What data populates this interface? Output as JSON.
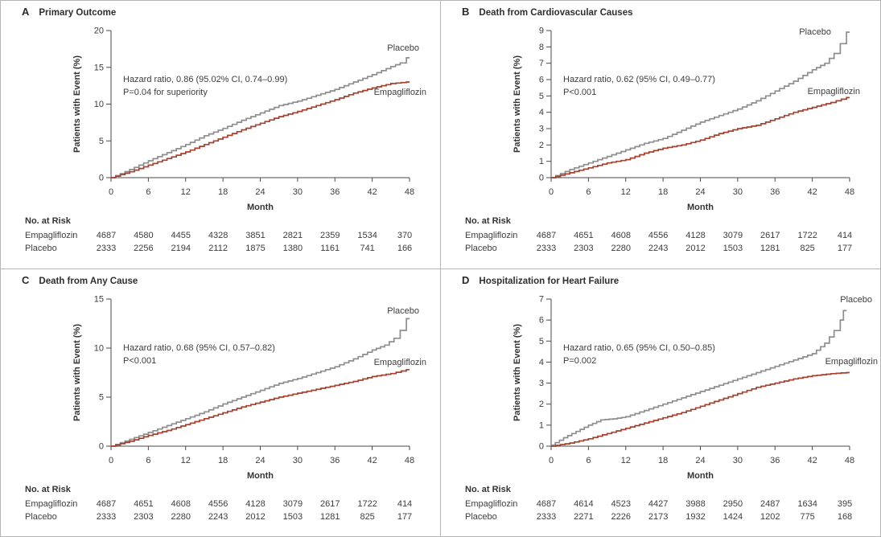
{
  "figure": {
    "description": "Four-panel Kaplan-Meier outcome figure",
    "colors": {
      "placebo": "#8e8e8e",
      "empagliflozin": "#a6402f",
      "axis": "#4a4a4a",
      "text": "#3d3d3d"
    }
  },
  "chart_data": [
    {
      "panel": "A",
      "title": "Primary Outcome",
      "type": "line",
      "subtype": "kaplan-meier-step",
      "xlabel": "Month",
      "ylabel": "Patients with Event (%)",
      "xlim": [
        0,
        48
      ],
      "ylim": [
        0,
        20
      ],
      "xticks": [
        0,
        6,
        12,
        18,
        24,
        30,
        36,
        42,
        48
      ],
      "yticks": [
        0,
        5,
        10,
        15,
        20
      ],
      "annotation": [
        "Hazard ratio, 0.86 (95.02% CI, 0.74–0.99)",
        "P=0.04 for superiority"
      ],
      "legend_position": "end-of-curve labels",
      "grid": false,
      "series": [
        {
          "name": "Placebo",
          "color": "#8e8e8e",
          "points": [
            [
              0,
              0
            ],
            [
              3,
              1.1
            ],
            [
              6,
              2.3
            ],
            [
              9,
              3.4
            ],
            [
              12,
              4.5
            ],
            [
              15,
              5.7
            ],
            [
              18,
              6.7
            ],
            [
              21,
              7.8
            ],
            [
              24,
              8.8
            ],
            [
              27,
              9.8
            ],
            [
              30,
              10.4
            ],
            [
              33,
              11.2
            ],
            [
              36,
              12.0
            ],
            [
              39,
              13.0
            ],
            [
              42,
              14.0
            ],
            [
              45,
              15.1
            ],
            [
              46.5,
              15.6
            ],
            [
              47.5,
              16.3
            ]
          ]
        },
        {
          "name": "Empagliflozin",
          "color": "#a6402f",
          "points": [
            [
              0,
              0
            ],
            [
              3,
              0.8
            ],
            [
              6,
              1.7
            ],
            [
              9,
              2.6
            ],
            [
              12,
              3.5
            ],
            [
              15,
              4.5
            ],
            [
              18,
              5.5
            ],
            [
              21,
              6.5
            ],
            [
              24,
              7.4
            ],
            [
              27,
              8.3
            ],
            [
              30,
              9.0
            ],
            [
              33,
              9.8
            ],
            [
              36,
              10.6
            ],
            [
              39,
              11.5
            ],
            [
              42,
              12.2
            ],
            [
              45,
              12.8
            ],
            [
              47.5,
              13.0
            ]
          ]
        }
      ],
      "no_at_risk": {
        "label": "No. at Risk",
        "months": [
          0,
          6,
          12,
          18,
          24,
          30,
          36,
          42,
          48
        ],
        "rows": [
          {
            "label": "Empagliflozin",
            "values": [
              4687,
              4580,
              4455,
              4328,
              3851,
              2821,
              2359,
              1534,
              370
            ]
          },
          {
            "label": "Placebo",
            "values": [
              2333,
              2256,
              2194,
              2112,
              1875,
              1380,
              1161,
              741,
              166
            ]
          }
        ]
      }
    },
    {
      "panel": "B",
      "title": "Death from Cardiovascular Causes",
      "type": "line",
      "subtype": "kaplan-meier-step",
      "xlabel": "Month",
      "ylabel": "Patients with Event (%)",
      "xlim": [
        0,
        48
      ],
      "ylim": [
        0,
        9
      ],
      "xticks": [
        0,
        6,
        12,
        18,
        24,
        30,
        36,
        42,
        48
      ],
      "yticks": [
        0,
        1,
        2,
        3,
        4,
        5,
        6,
        7,
        8,
        9
      ],
      "annotation": [
        "Hazard ratio, 0.62 (95% CI, 0.49–0.77)",
        "P<0.001"
      ],
      "legend_position": "end-of-curve labels",
      "grid": false,
      "series": [
        {
          "name": "Placebo",
          "color": "#8e8e8e",
          "points": [
            [
              0,
              0
            ],
            [
              3,
              0.5
            ],
            [
              6,
              0.9
            ],
            [
              9,
              1.3
            ],
            [
              12,
              1.7
            ],
            [
              15,
              2.1
            ],
            [
              18,
              2.4
            ],
            [
              21,
              2.9
            ],
            [
              24,
              3.4
            ],
            [
              27,
              3.8
            ],
            [
              30,
              4.2
            ],
            [
              33,
              4.7
            ],
            [
              36,
              5.3
            ],
            [
              39,
              5.9
            ],
            [
              42,
              6.6
            ],
            [
              44,
              7.0
            ],
            [
              45.5,
              7.6
            ],
            [
              46.5,
              8.2
            ],
            [
              47.5,
              8.9
            ]
          ]
        },
        {
          "name": "Empagliflozin",
          "color": "#a6402f",
          "points": [
            [
              0,
              0
            ],
            [
              3,
              0.3
            ],
            [
              6,
              0.6
            ],
            [
              9,
              0.9
            ],
            [
              12,
              1.1
            ],
            [
              15,
              1.5
            ],
            [
              18,
              1.8
            ],
            [
              21,
              2.0
            ],
            [
              24,
              2.3
            ],
            [
              27,
              2.7
            ],
            [
              30,
              3.0
            ],
            [
              33,
              3.2
            ],
            [
              36,
              3.6
            ],
            [
              39,
              4.0
            ],
            [
              42,
              4.3
            ],
            [
              45,
              4.6
            ],
            [
              47.5,
              4.9
            ]
          ]
        }
      ],
      "no_at_risk": {
        "label": "No. at Risk",
        "months": [
          0,
          6,
          12,
          18,
          24,
          30,
          36,
          42,
          48
        ],
        "rows": [
          {
            "label": "Empagliflozin",
            "values": [
              4687,
              4651,
              4608,
              4556,
              4128,
              3079,
              2617,
              1722,
              414
            ]
          },
          {
            "label": "Placebo",
            "values": [
              2333,
              2303,
              2280,
              2243,
              2012,
              1503,
              1281,
              825,
              177
            ]
          }
        ]
      }
    },
    {
      "panel": "C",
      "title": "Death from Any Cause",
      "type": "line",
      "subtype": "kaplan-meier-step",
      "xlabel": "Month",
      "ylabel": "Patients with Event (%)",
      "xlim": [
        0,
        48
      ],
      "ylim": [
        0,
        15
      ],
      "xticks": [
        0,
        6,
        12,
        18,
        24,
        30,
        36,
        42,
        48
      ],
      "yticks": [
        0,
        5,
        10,
        15
      ],
      "annotation": [
        "Hazard ratio, 0.68 (95% CI, 0.57–0.82)",
        "P<0.001"
      ],
      "legend_position": "end-of-curve labels",
      "grid": false,
      "series": [
        {
          "name": "Placebo",
          "color": "#8e8e8e",
          "points": [
            [
              0,
              0
            ],
            [
              3,
              0.7
            ],
            [
              6,
              1.4
            ],
            [
              9,
              2.1
            ],
            [
              12,
              2.8
            ],
            [
              15,
              3.5
            ],
            [
              18,
              4.3
            ],
            [
              21,
              5.0
            ],
            [
              24,
              5.7
            ],
            [
              27,
              6.4
            ],
            [
              30,
              6.9
            ],
            [
              33,
              7.5
            ],
            [
              36,
              8.1
            ],
            [
              39,
              8.9
            ],
            [
              42,
              9.8
            ],
            [
              44,
              10.3
            ],
            [
              45.5,
              11.0
            ],
            [
              46.5,
              11.8
            ],
            [
              47.5,
              13.0
            ]
          ]
        },
        {
          "name": "Empagliflozin",
          "color": "#a6402f",
          "points": [
            [
              0,
              0
            ],
            [
              3,
              0.5
            ],
            [
              6,
              1.1
            ],
            [
              9,
              1.6
            ],
            [
              12,
              2.2
            ],
            [
              15,
              2.8
            ],
            [
              18,
              3.4
            ],
            [
              21,
              4.0
            ],
            [
              24,
              4.5
            ],
            [
              27,
              5.0
            ],
            [
              30,
              5.4
            ],
            [
              33,
              5.8
            ],
            [
              36,
              6.2
            ],
            [
              39,
              6.6
            ],
            [
              42,
              7.1
            ],
            [
              45,
              7.4
            ],
            [
              47.5,
              7.8
            ]
          ]
        }
      ],
      "no_at_risk": {
        "label": "No. at Risk",
        "months": [
          0,
          6,
          12,
          18,
          24,
          30,
          36,
          42,
          48
        ],
        "rows": [
          {
            "label": "Empagliflozin",
            "values": [
              4687,
              4651,
              4608,
              4556,
              4128,
              3079,
              2617,
              1722,
              414
            ]
          },
          {
            "label": "Placebo",
            "values": [
              2333,
              2303,
              2280,
              2243,
              2012,
              1503,
              1281,
              825,
              177
            ]
          }
        ]
      }
    },
    {
      "panel": "D",
      "title": "Hospitalization for Heart Failure",
      "type": "line",
      "subtype": "kaplan-meier-step",
      "xlabel": "Month",
      "ylabel": "Patients with Event (%)",
      "xlim": [
        0,
        48
      ],
      "ylim": [
        0,
        7
      ],
      "xticks": [
        0,
        6,
        12,
        18,
        24,
        30,
        36,
        42,
        48
      ],
      "yticks": [
        0,
        1,
        2,
        3,
        4,
        5,
        6,
        7
      ],
      "annotation": [
        "Hazard ratio, 0.65 (95% CI, 0.50–0.85)",
        "P=0.002"
      ],
      "legend_position": "end-of-curve labels",
      "grid": false,
      "series": [
        {
          "name": "Placebo",
          "color": "#8e8e8e",
          "points": [
            [
              0,
              0.05
            ],
            [
              2,
              0.4
            ],
            [
              4,
              0.7
            ],
            [
              6,
              1.0
            ],
            [
              8,
              1.25
            ],
            [
              10,
              1.3
            ],
            [
              12,
              1.4
            ],
            [
              15,
              1.7
            ],
            [
              18,
              2.0
            ],
            [
              21,
              2.3
            ],
            [
              24,
              2.6
            ],
            [
              27,
              2.9
            ],
            [
              30,
              3.2
            ],
            [
              33,
              3.5
            ],
            [
              36,
              3.8
            ],
            [
              39,
              4.1
            ],
            [
              42,
              4.4
            ],
            [
              44,
              4.9
            ],
            [
              45.5,
              5.5
            ],
            [
              46.5,
              6.0
            ],
            [
              47,
              6.45
            ]
          ]
        },
        {
          "name": "Empagliflozin",
          "color": "#a6402f",
          "points": [
            [
              0,
              0
            ],
            [
              3,
              0.15
            ],
            [
              6,
              0.35
            ],
            [
              9,
              0.6
            ],
            [
              12,
              0.85
            ],
            [
              15,
              1.1
            ],
            [
              18,
              1.35
            ],
            [
              21,
              1.6
            ],
            [
              24,
              1.9
            ],
            [
              27,
              2.2
            ],
            [
              30,
              2.5
            ],
            [
              33,
              2.8
            ],
            [
              36,
              3.0
            ],
            [
              39,
              3.2
            ],
            [
              42,
              3.35
            ],
            [
              45,
              3.45
            ],
            [
              47.5,
              3.5
            ]
          ]
        }
      ],
      "no_at_risk": {
        "label": "No. at Risk",
        "months": [
          0,
          6,
          12,
          18,
          24,
          30,
          36,
          42,
          48
        ],
        "rows": [
          {
            "label": "Empagliflozin",
            "values": [
              4687,
              4614,
              4523,
              4427,
              3988,
              2950,
              2487,
              1634,
              395
            ]
          },
          {
            "label": "Placebo",
            "values": [
              2333,
              2271,
              2226,
              2173,
              1932,
              1424,
              1202,
              775,
              168
            ]
          }
        ]
      }
    }
  ]
}
